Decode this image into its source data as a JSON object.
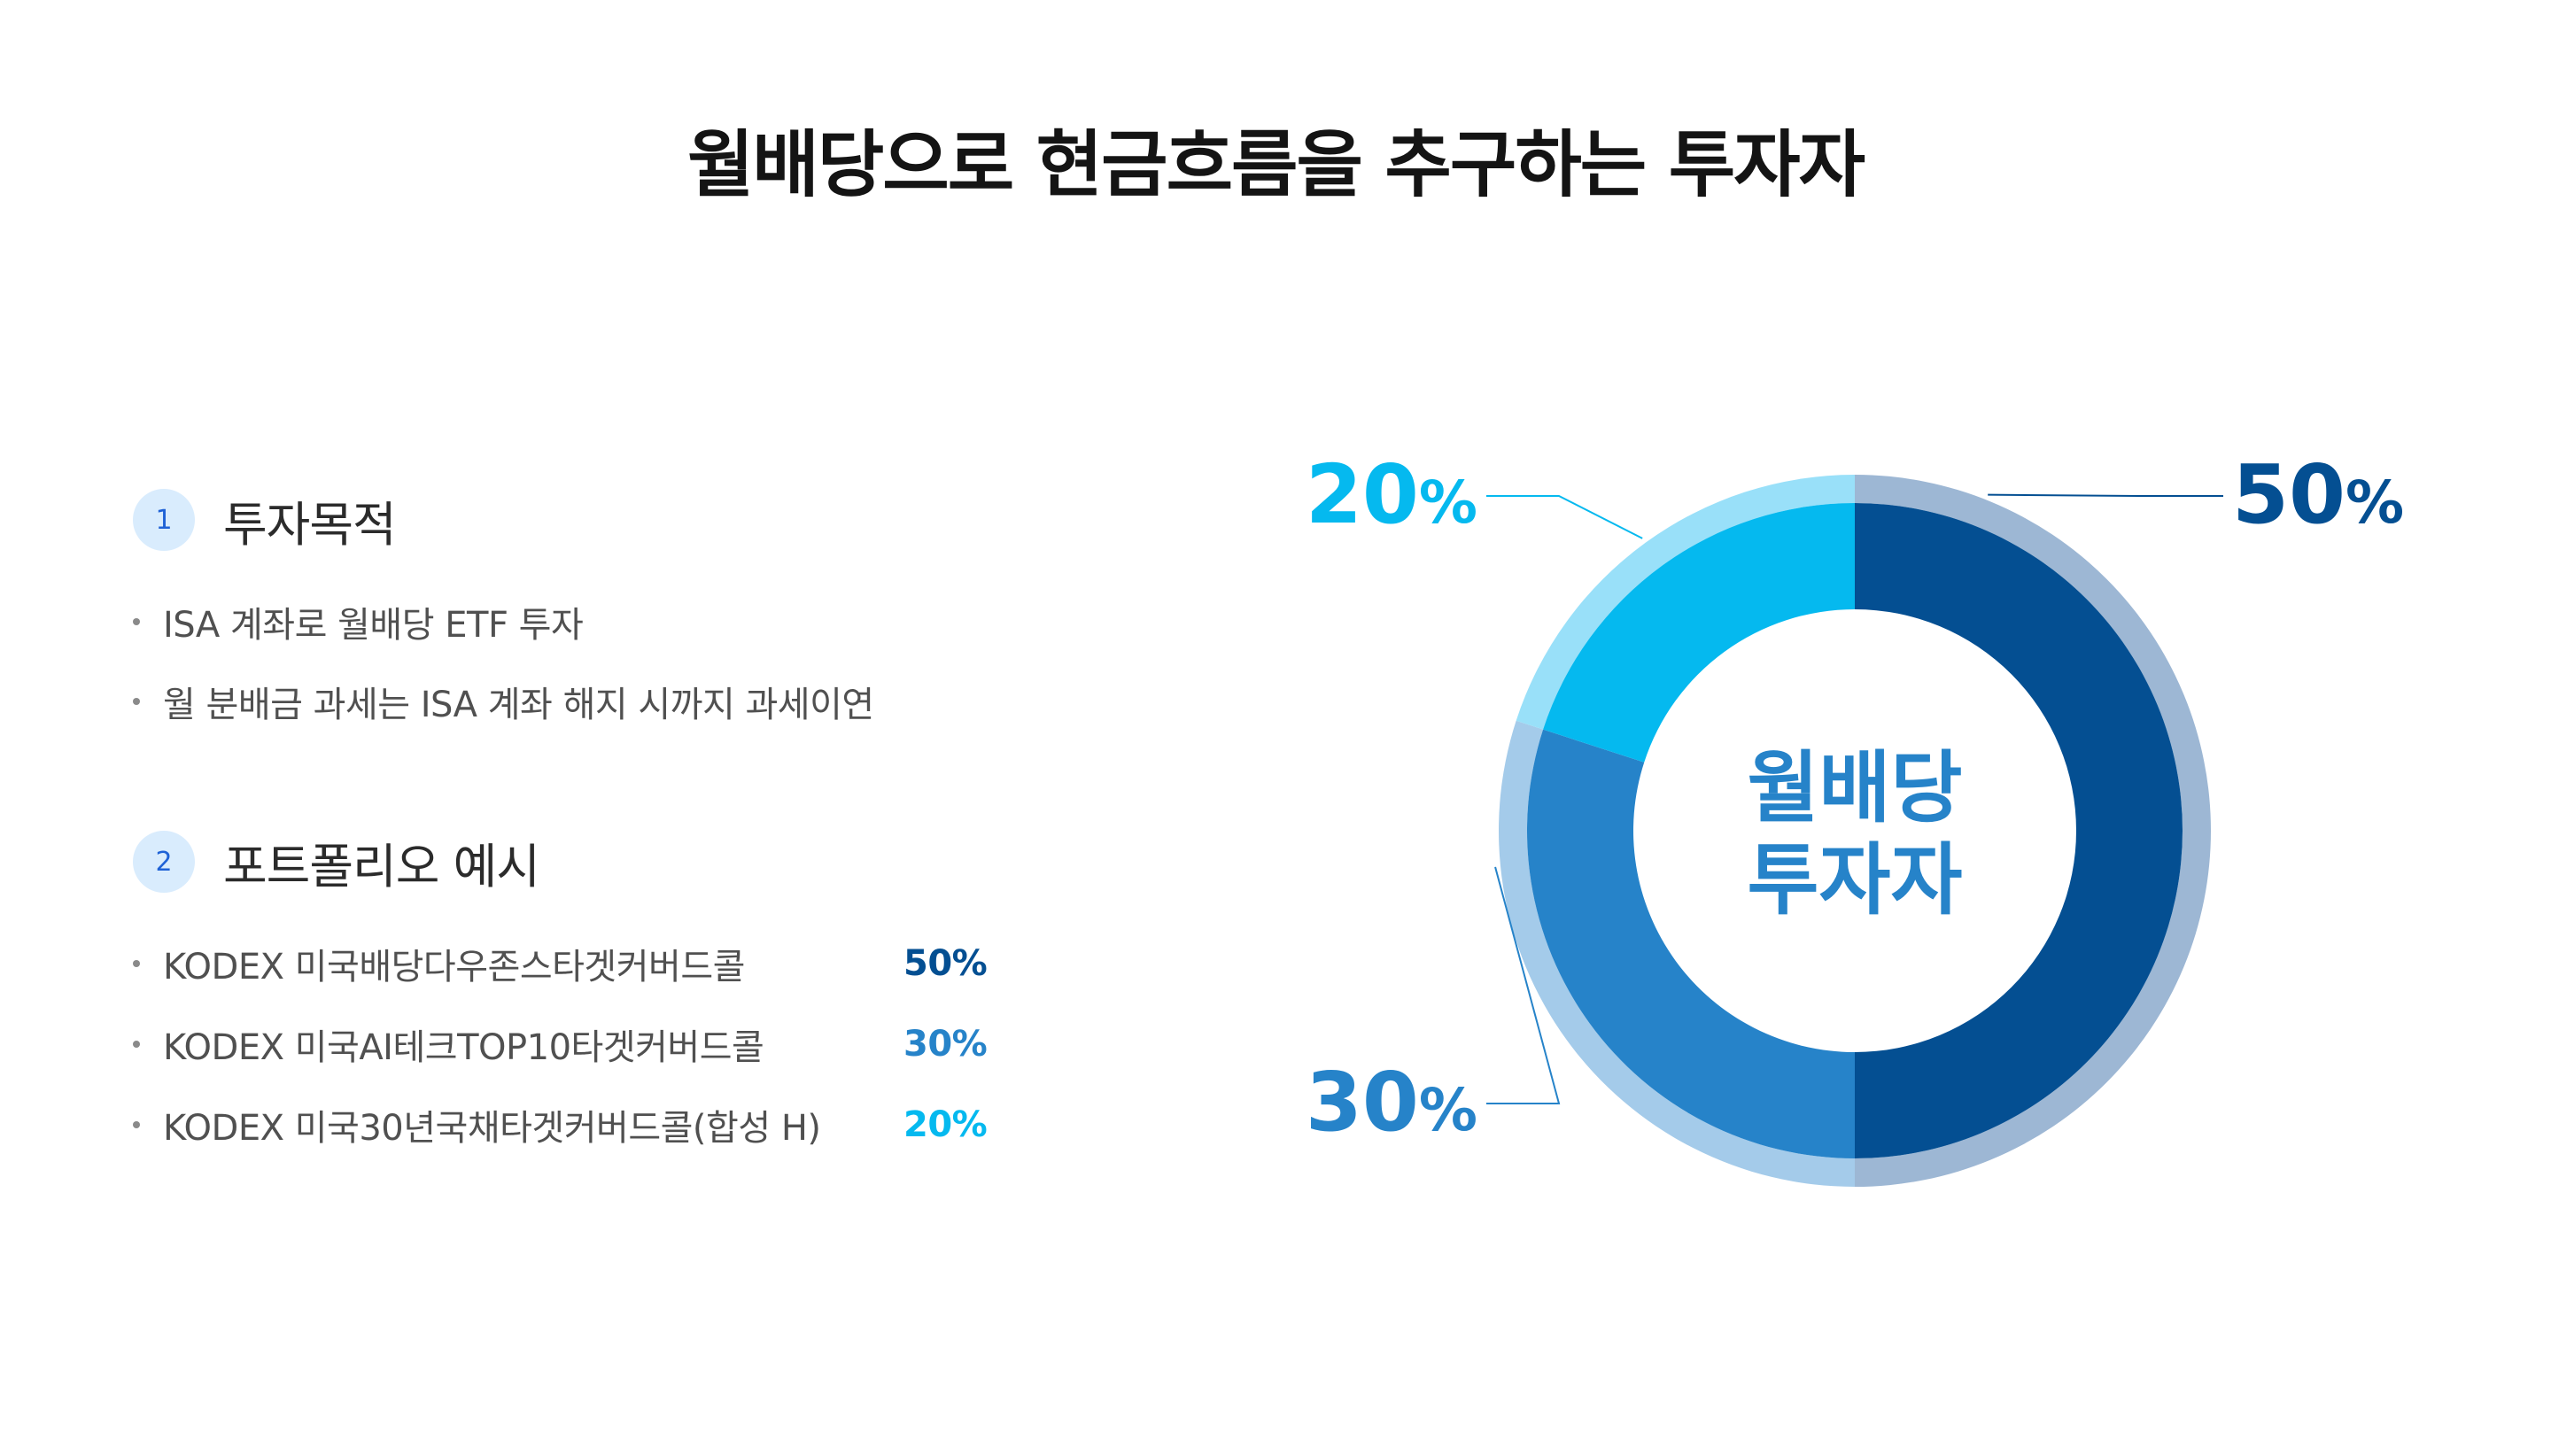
{
  "title": "월배당으로 현금흐름을 추구하는 투자자",
  "sections": [
    {
      "number": "1",
      "title": "투자목적",
      "bullets": [
        "ISA 계좌로 월배당 ETF 투자",
        "월 분배금 과세는 ISA 계좌 해지 시까지 과세이연"
      ]
    },
    {
      "number": "2",
      "title": "포트폴리오 예시",
      "bullets": [
        "KODEX 미국배당다우존스타겟커버드콜",
        "KODEX 미국AI테크TOP10타겟커버드콜",
        "KODEX 미국30년국채타겟커버드콜(합성 H)"
      ],
      "percents": [
        "50%",
        "30%",
        "20%"
      ]
    }
  ],
  "chart_data": {
    "type": "pie",
    "style": "donut",
    "center_label": [
      "월배당",
      "투자자"
    ],
    "slices": [
      {
        "label": "50%",
        "value": 50,
        "color": "#044f92",
        "ring_color": "#9db7d4"
      },
      {
        "label": "30%",
        "value": 30,
        "color": "#2683c9",
        "ring_color": "#a4cbea"
      },
      {
        "label": "20%",
        "value": 20,
        "color": "#05b9ef",
        "ring_color": "#99e0f9"
      }
    ],
    "colors": {
      "portfolio_1": "#044f92",
      "portfolio_2": "#2683c9",
      "portfolio_3": "#05b9ef"
    },
    "center_label_color": "#2683c9"
  }
}
